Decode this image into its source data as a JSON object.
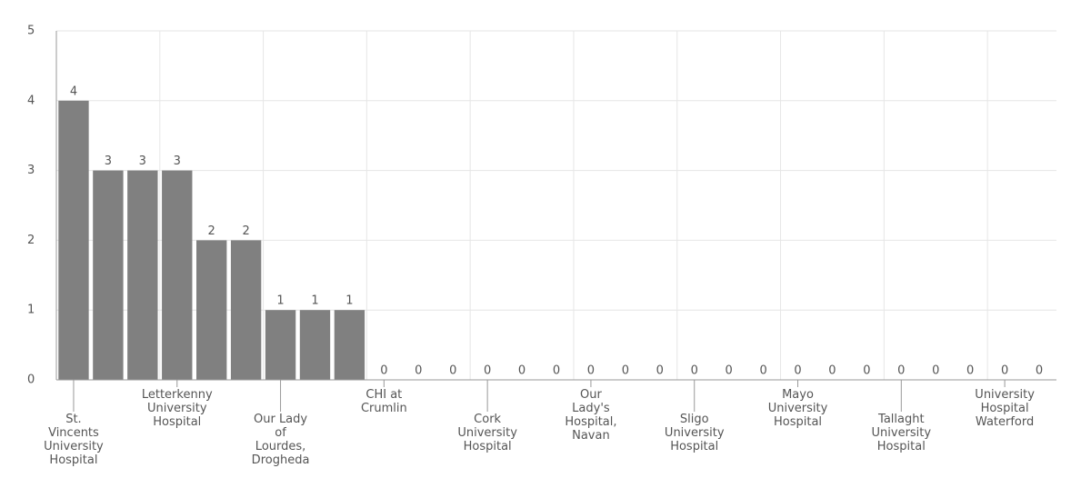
{
  "chart_data": {
    "type": "bar",
    "categories": [
      "St. Vincents University Hospital",
      null,
      null,
      "Letterkenny University Hospital",
      null,
      null,
      "Our Lady of Lourdes, Drogheda",
      null,
      null,
      "CHI at Crumlin",
      null,
      null,
      "Cork University Hospital",
      null,
      null,
      "Our Lady's Hospital, Navan",
      null,
      null,
      "Sligo University Hospital",
      null,
      null,
      "Mayo University Hospital",
      null,
      null,
      "Tallaght University Hospital",
      null,
      null,
      "University Hospital Waterford",
      null
    ],
    "values": [
      4,
      3,
      3,
      3,
      2,
      2,
      1,
      1,
      1,
      0,
      0,
      0,
      0,
      0,
      0,
      0,
      0,
      0,
      0,
      0,
      0,
      0,
      0,
      0,
      0,
      0,
      0,
      0,
      0
    ],
    "color": "#808080",
    "ylim": [
      0,
      5
    ],
    "yticks": [
      0,
      1,
      2,
      3,
      4,
      5
    ],
    "grid": true
  }
}
